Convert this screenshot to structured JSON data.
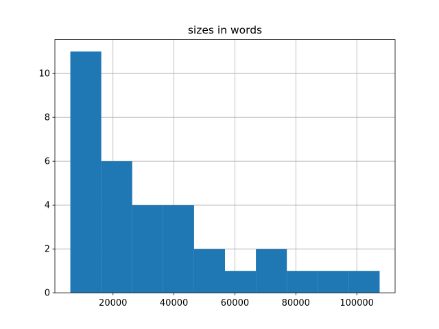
{
  "chart_data": {
    "type": "histogram",
    "title": "sizes in words",
    "bins": [
      6000,
      16150,
      26300,
      36450,
      46600,
      56750,
      66900,
      77050,
      87200,
      97350,
      107500
    ],
    "values": [
      11,
      6,
      4,
      4,
      2,
      1,
      2,
      1,
      1,
      1
    ],
    "color": "#1f77b4",
    "xlim": [
      925,
      112575
    ],
    "xticks": [
      20000,
      40000,
      60000,
      80000,
      100000
    ],
    "ylim": [
      0,
      11.55
    ],
    "yticks": [
      0,
      2,
      4,
      6,
      8,
      10
    ],
    "grid": true
  }
}
